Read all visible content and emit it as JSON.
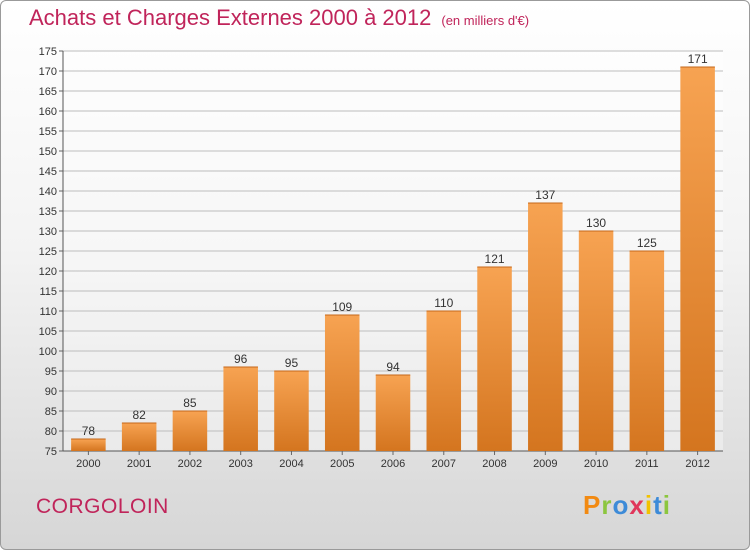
{
  "header": {
    "title": "Achats et Charges Externes 2000 à 2012",
    "unit": "(en milliers d'€)"
  },
  "footer": {
    "commune": "CORGOLOIN"
  },
  "logo": {
    "letters": [
      "P",
      "r",
      "o",
      "x",
      "i",
      "t",
      "i"
    ],
    "colors": [
      "#f28a12",
      "#8cc63f",
      "#3d8bd8",
      "#e0365b",
      "#f2c200",
      "#3d8bd8",
      "#8cc63f"
    ]
  },
  "colors": {
    "bar_light": "#f7a352",
    "bar_dark": "#d4751f",
    "title": "#c0245a",
    "grid": "#bdbdbd"
  },
  "chart_data": {
    "type": "bar",
    "title": "Achats et Charges Externes 2000 à 2012",
    "subtitle": "(en milliers d'€)",
    "xlabel": "",
    "ylabel": "",
    "categories": [
      "2000",
      "2001",
      "2002",
      "2003",
      "2004",
      "2005",
      "2006",
      "2007",
      "2008",
      "2009",
      "2010",
      "2011",
      "2012"
    ],
    "values": [
      78,
      82,
      85,
      96,
      95,
      109,
      94,
      110,
      121,
      137,
      130,
      125,
      171
    ],
    "ylim": [
      75,
      175
    ],
    "ytick_step": 5,
    "grid": true,
    "legend": "none"
  }
}
